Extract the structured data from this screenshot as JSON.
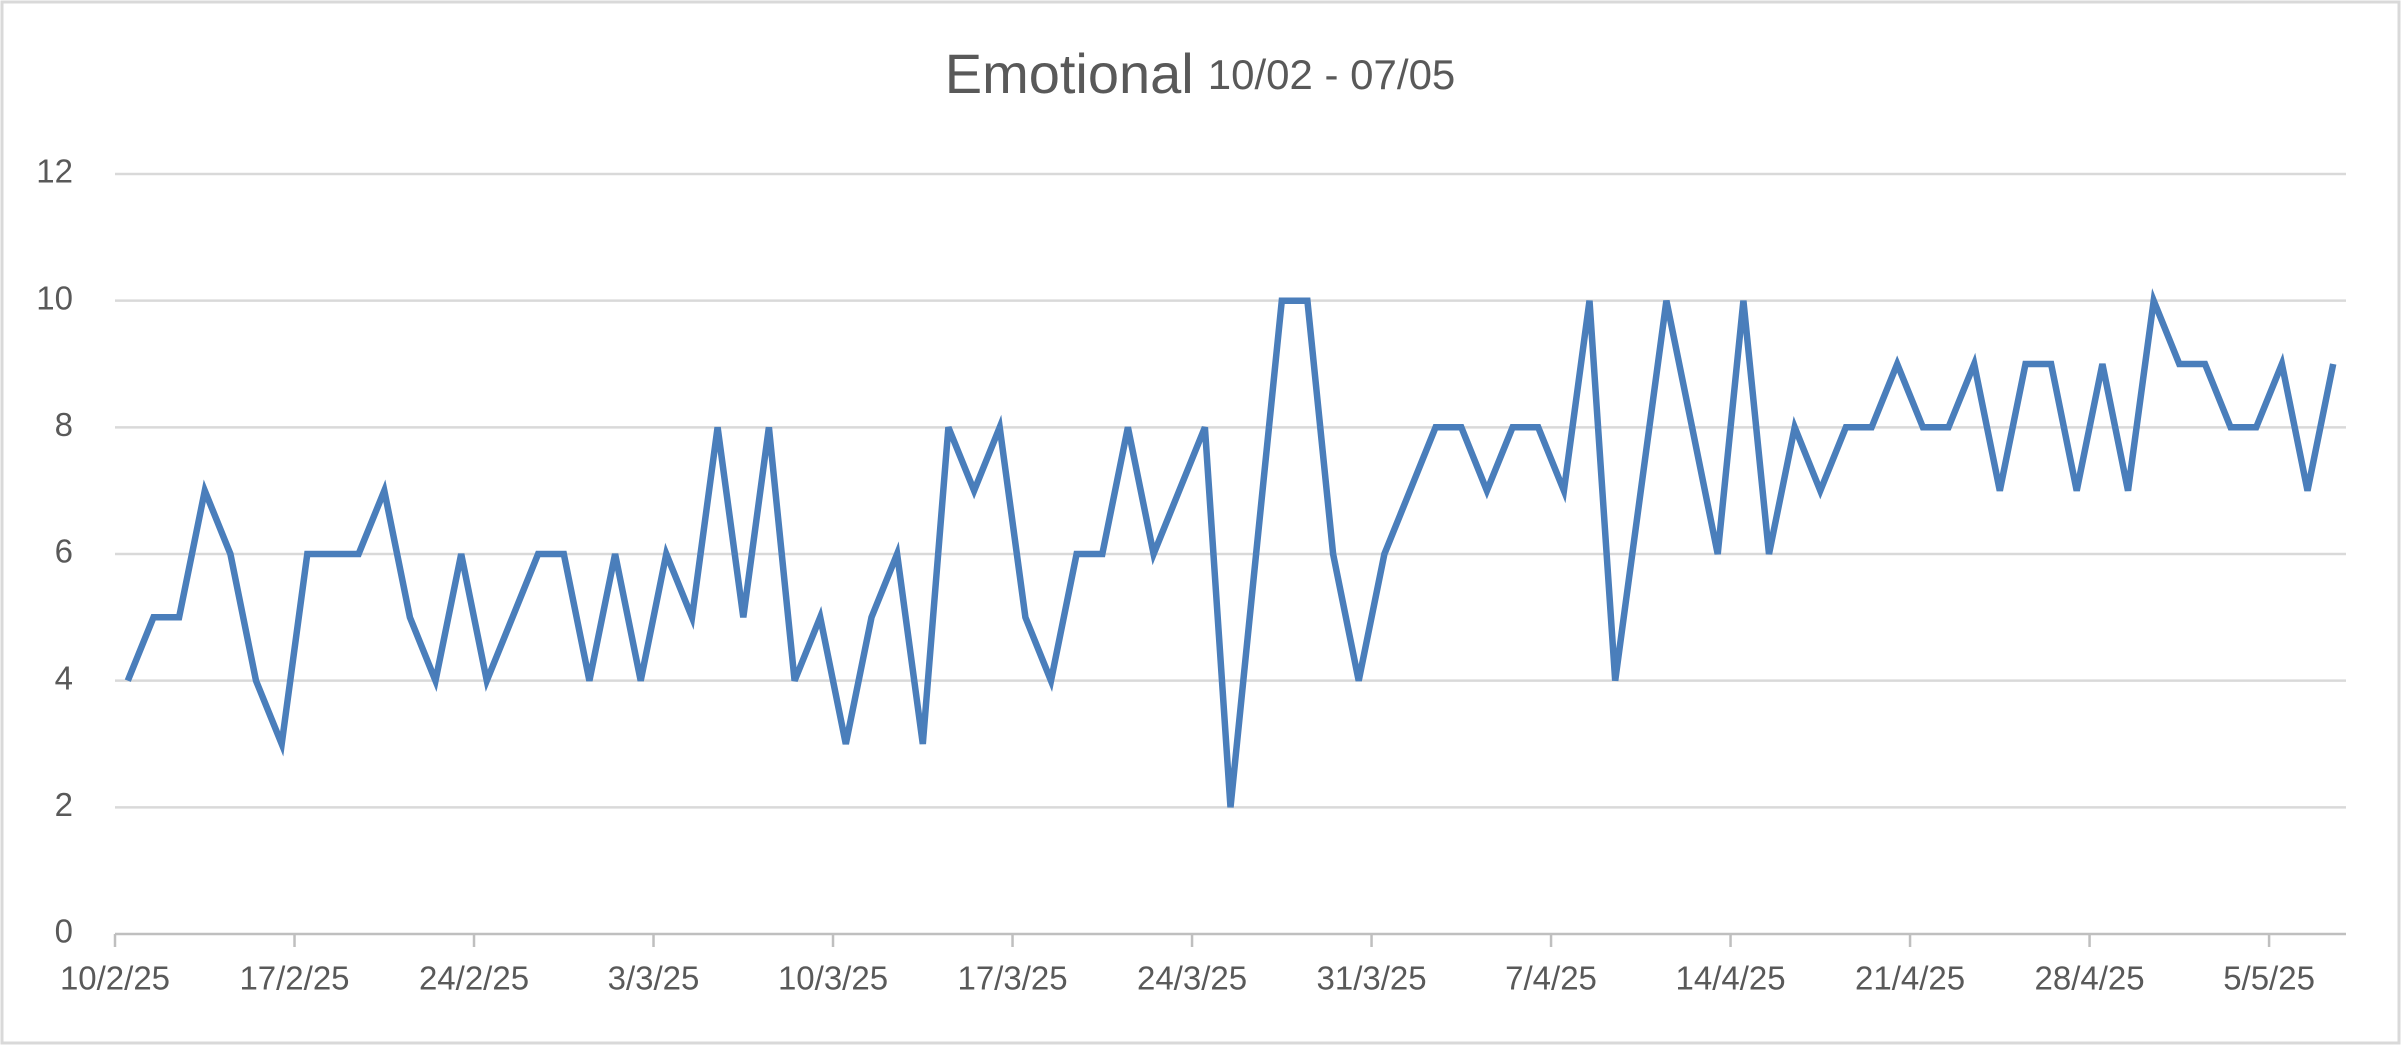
{
  "chart_data": {
    "type": "line",
    "title": "Emotional",
    "subtitle": "10/02 - 07/05",
    "categories": [
      "10/2/25",
      null,
      null,
      null,
      null,
      null,
      null,
      "17/2/25",
      null,
      null,
      null,
      null,
      null,
      null,
      "24/2/25",
      null,
      null,
      null,
      null,
      null,
      null,
      "3/3/25",
      null,
      null,
      null,
      null,
      null,
      null,
      "10/3/25",
      null,
      null,
      null,
      null,
      null,
      null,
      "17/3/25",
      null,
      null,
      null,
      null,
      null,
      null,
      "24/3/25",
      null,
      null,
      null,
      null,
      null,
      null,
      "31/3/25",
      null,
      null,
      null,
      null,
      null,
      null,
      "7/4/25",
      null,
      null,
      null,
      null,
      null,
      null,
      "14/4/25",
      null,
      null,
      null,
      null,
      null,
      null,
      "21/4/25",
      null,
      null,
      null,
      null,
      null,
      null,
      "28/4/25",
      null,
      null,
      null,
      null,
      null,
      null,
      "5/5/25",
      null,
      null
    ],
    "series": [
      {
        "name": "Emotional",
        "color": "#4a7ebb",
        "values": [
          4,
          5,
          5,
          7,
          6,
          4,
          3,
          6,
          6,
          6,
          7,
          5,
          4,
          6,
          4,
          5,
          6,
          6,
          4,
          6,
          4,
          6,
          5,
          8,
          5,
          8,
          4,
          5,
          3,
          5,
          6,
          3,
          8,
          7,
          8,
          5,
          4,
          6,
          6,
          8,
          6,
          7,
          8,
          2,
          6,
          10,
          10,
          6,
          4,
          6,
          7,
          8,
          8,
          7,
          8,
          8,
          7,
          10,
          4,
          7,
          10,
          8,
          6,
          10,
          6,
          8,
          7,
          8,
          8,
          9,
          8,
          8,
          9,
          7,
          9,
          9,
          7,
          9,
          7,
          10,
          9,
          9,
          8,
          8,
          9,
          7,
          9
        ]
      }
    ],
    "ylim": [
      0,
      12
    ],
    "yticks": [
      0,
      2,
      4,
      6,
      8,
      10,
      12
    ],
    "grid": true
  }
}
